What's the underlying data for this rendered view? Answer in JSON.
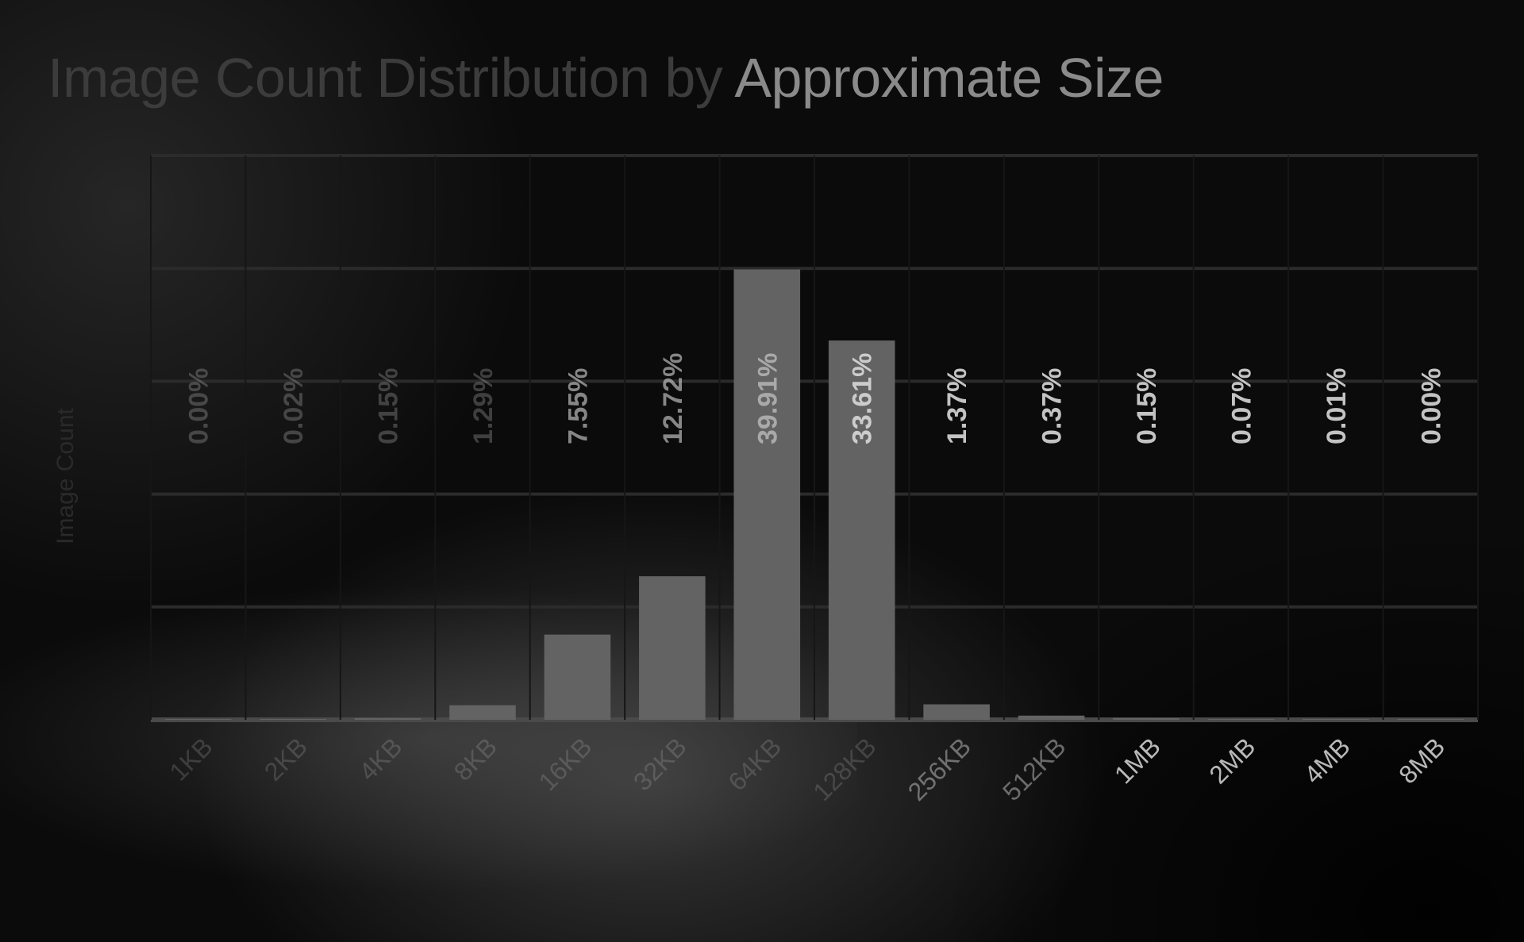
{
  "chart_data": {
    "type": "bar",
    "title": "Image Count Distribution by Approximate Size",
    "ylabel": "Image Count",
    "xlabel": "",
    "categories": [
      "1KB",
      "2KB",
      "4KB",
      "8KB",
      "16KB",
      "32KB",
      "64KB",
      "128KB",
      "256KB",
      "512KB",
      "1MB",
      "2MB",
      "4MB",
      "8MB"
    ],
    "values": [
      0.0,
      0.02,
      0.15,
      1.29,
      7.55,
      12.72,
      39.91,
      33.61,
      1.37,
      0.37,
      0.15,
      0.07,
      0.01,
      0.0
    ],
    "data_labels": [
      "0.00%",
      "0.02%",
      "0.15%",
      "1.29%",
      "7.55%",
      "12.72%",
      "39.91%",
      "33.61%",
      "1.37%",
      "0.37%",
      "0.15%",
      "0.07%",
      "0.01%",
      "0.00%"
    ],
    "ylim": [
      0,
      50
    ],
    "grid": true,
    "legend": "none",
    "colors": {
      "bar": "#636363",
      "grid": "#2b2b2b",
      "axis": "#4a4a4a",
      "label": "#d8d8d8",
      "title": "#8a8a8a"
    }
  }
}
